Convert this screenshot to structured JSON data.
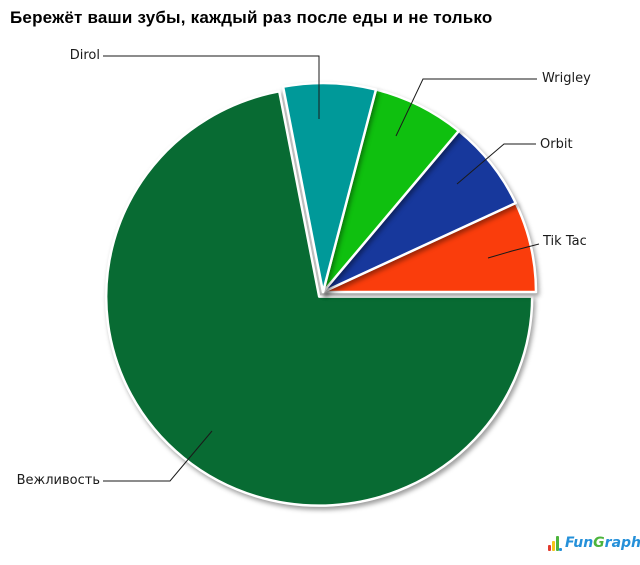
{
  "title": "Бережёт ваши зубы, каждый раз после еды и не только",
  "chart_data": {
    "type": "pie",
    "title": "Бережёт ваши зубы, каждый раз после еды и не только",
    "labels": [
      "Tik Tac",
      "Orbit",
      "Wrigley",
      "Dirol",
      "Вежливость"
    ],
    "ids": [
      "tik-tac",
      "orbit",
      "wrigley",
      "dirol",
      "vezhlivost"
    ],
    "values": [
      7,
      7,
      7,
      7,
      72
    ],
    "colors": [
      "#fa3d0c",
      "#17389c",
      "#0fc00f",
      "#009999",
      "#086b33"
    ],
    "exploded": [
      false,
      false,
      false,
      false,
      true
    ],
    "start_angle_deg": 0,
    "direction": "counterclockwise",
    "legend_position": "none",
    "labeling": "callout-lines",
    "slice_border_color": "#ffffff"
  },
  "logo": {
    "fun": "Fun",
    "g": "G",
    "raph": "raph",
    "bar_colors": [
      "#e23a2e",
      "#f5c518",
      "#4cb43c",
      "#2590d9"
    ]
  }
}
